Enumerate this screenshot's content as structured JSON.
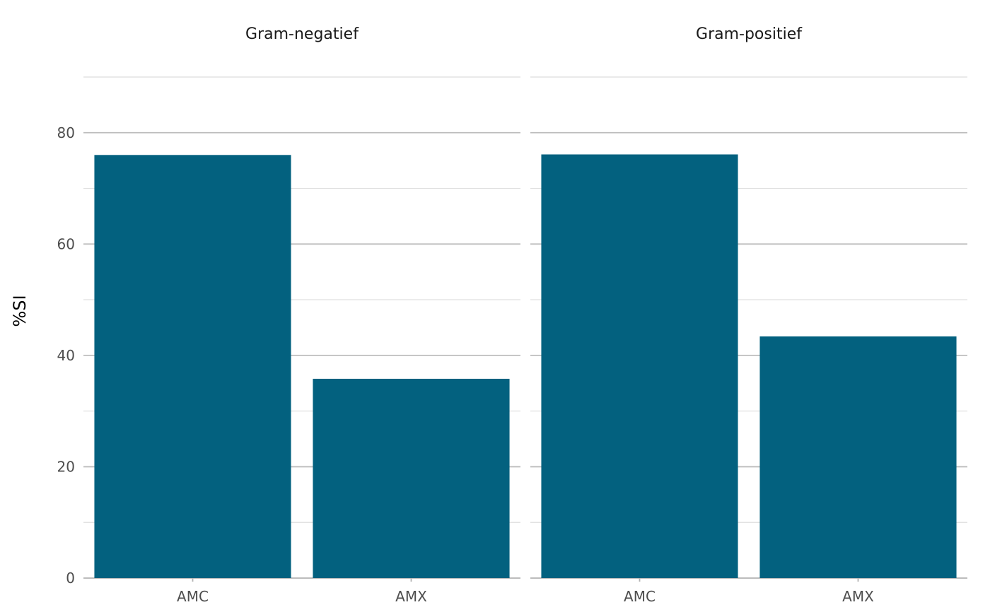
{
  "chart_data": {
    "type": "bar",
    "ylabel": "%SI",
    "ylim": [
      0,
      90
    ],
    "yticks": [
      0,
      20,
      40,
      60,
      80
    ],
    "y_tick_labels": [
      "0",
      "20",
      "40",
      "60",
      "80"
    ],
    "minor_grid": [
      10,
      30,
      50,
      70,
      90
    ],
    "grid": true,
    "bar_color": "#03617F",
    "categories": [
      "AMC",
      "AMX"
    ],
    "facets": [
      {
        "title": "Gram-negatief",
        "values": [
          76,
          35.8
        ]
      },
      {
        "title": "Gram-positief",
        "values": [
          76.1,
          43.4
        ]
      }
    ]
  }
}
